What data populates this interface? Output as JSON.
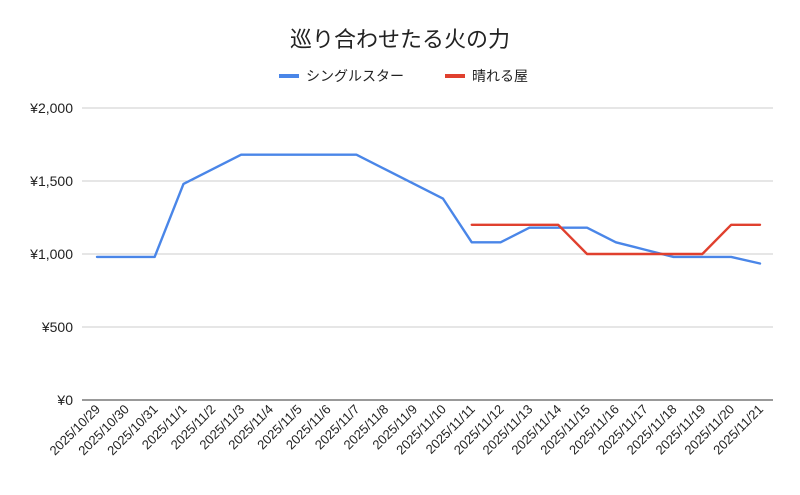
{
  "chart_data": {
    "type": "line",
    "title": "巡り合わせたる火の力",
    "xlabel": "",
    "ylabel": "",
    "ylim": [
      0,
      2000
    ],
    "yticks": [
      0,
      500,
      1000,
      1500,
      2000
    ],
    "ytick_labels": [
      "¥0",
      "¥500",
      "¥1,000",
      "¥1,500",
      "¥2,000"
    ],
    "grid": true,
    "legend_position": "top",
    "categories": [
      "2025/10/29",
      "2025/10/30",
      "2025/10/31",
      "2025/11/1",
      "2025/11/2",
      "2025/11/3",
      "2025/11/4",
      "2025/11/5",
      "2025/11/6",
      "2025/11/7",
      "2025/11/8",
      "2025/11/9",
      "2025/11/10",
      "2025/11/11",
      "2025/11/12",
      "2025/11/13",
      "2025/11/14",
      "2025/11/15",
      "2025/11/16",
      "2025/11/17",
      "2025/11/18",
      "2025/11/19",
      "2025/11/20",
      "2025/11/21"
    ],
    "series": [
      {
        "name": "シングルスター",
        "color": "#4a86e8",
        "values": [
          980,
          980,
          980,
          1480,
          1580,
          1680,
          1680,
          1680,
          1680,
          1680,
          1580,
          1480,
          1380,
          1080,
          1080,
          1180,
          1180,
          1180,
          1080,
          1030,
          980,
          980,
          980,
          935
        ]
      },
      {
        "name": "晴れる屋",
        "color": "#e0402e",
        "values": [
          null,
          null,
          null,
          null,
          null,
          null,
          null,
          null,
          null,
          null,
          null,
          null,
          null,
          1200,
          1200,
          1200,
          1200,
          1000,
          1000,
          1000,
          1000,
          1000,
          1200,
          1200
        ]
      }
    ]
  }
}
